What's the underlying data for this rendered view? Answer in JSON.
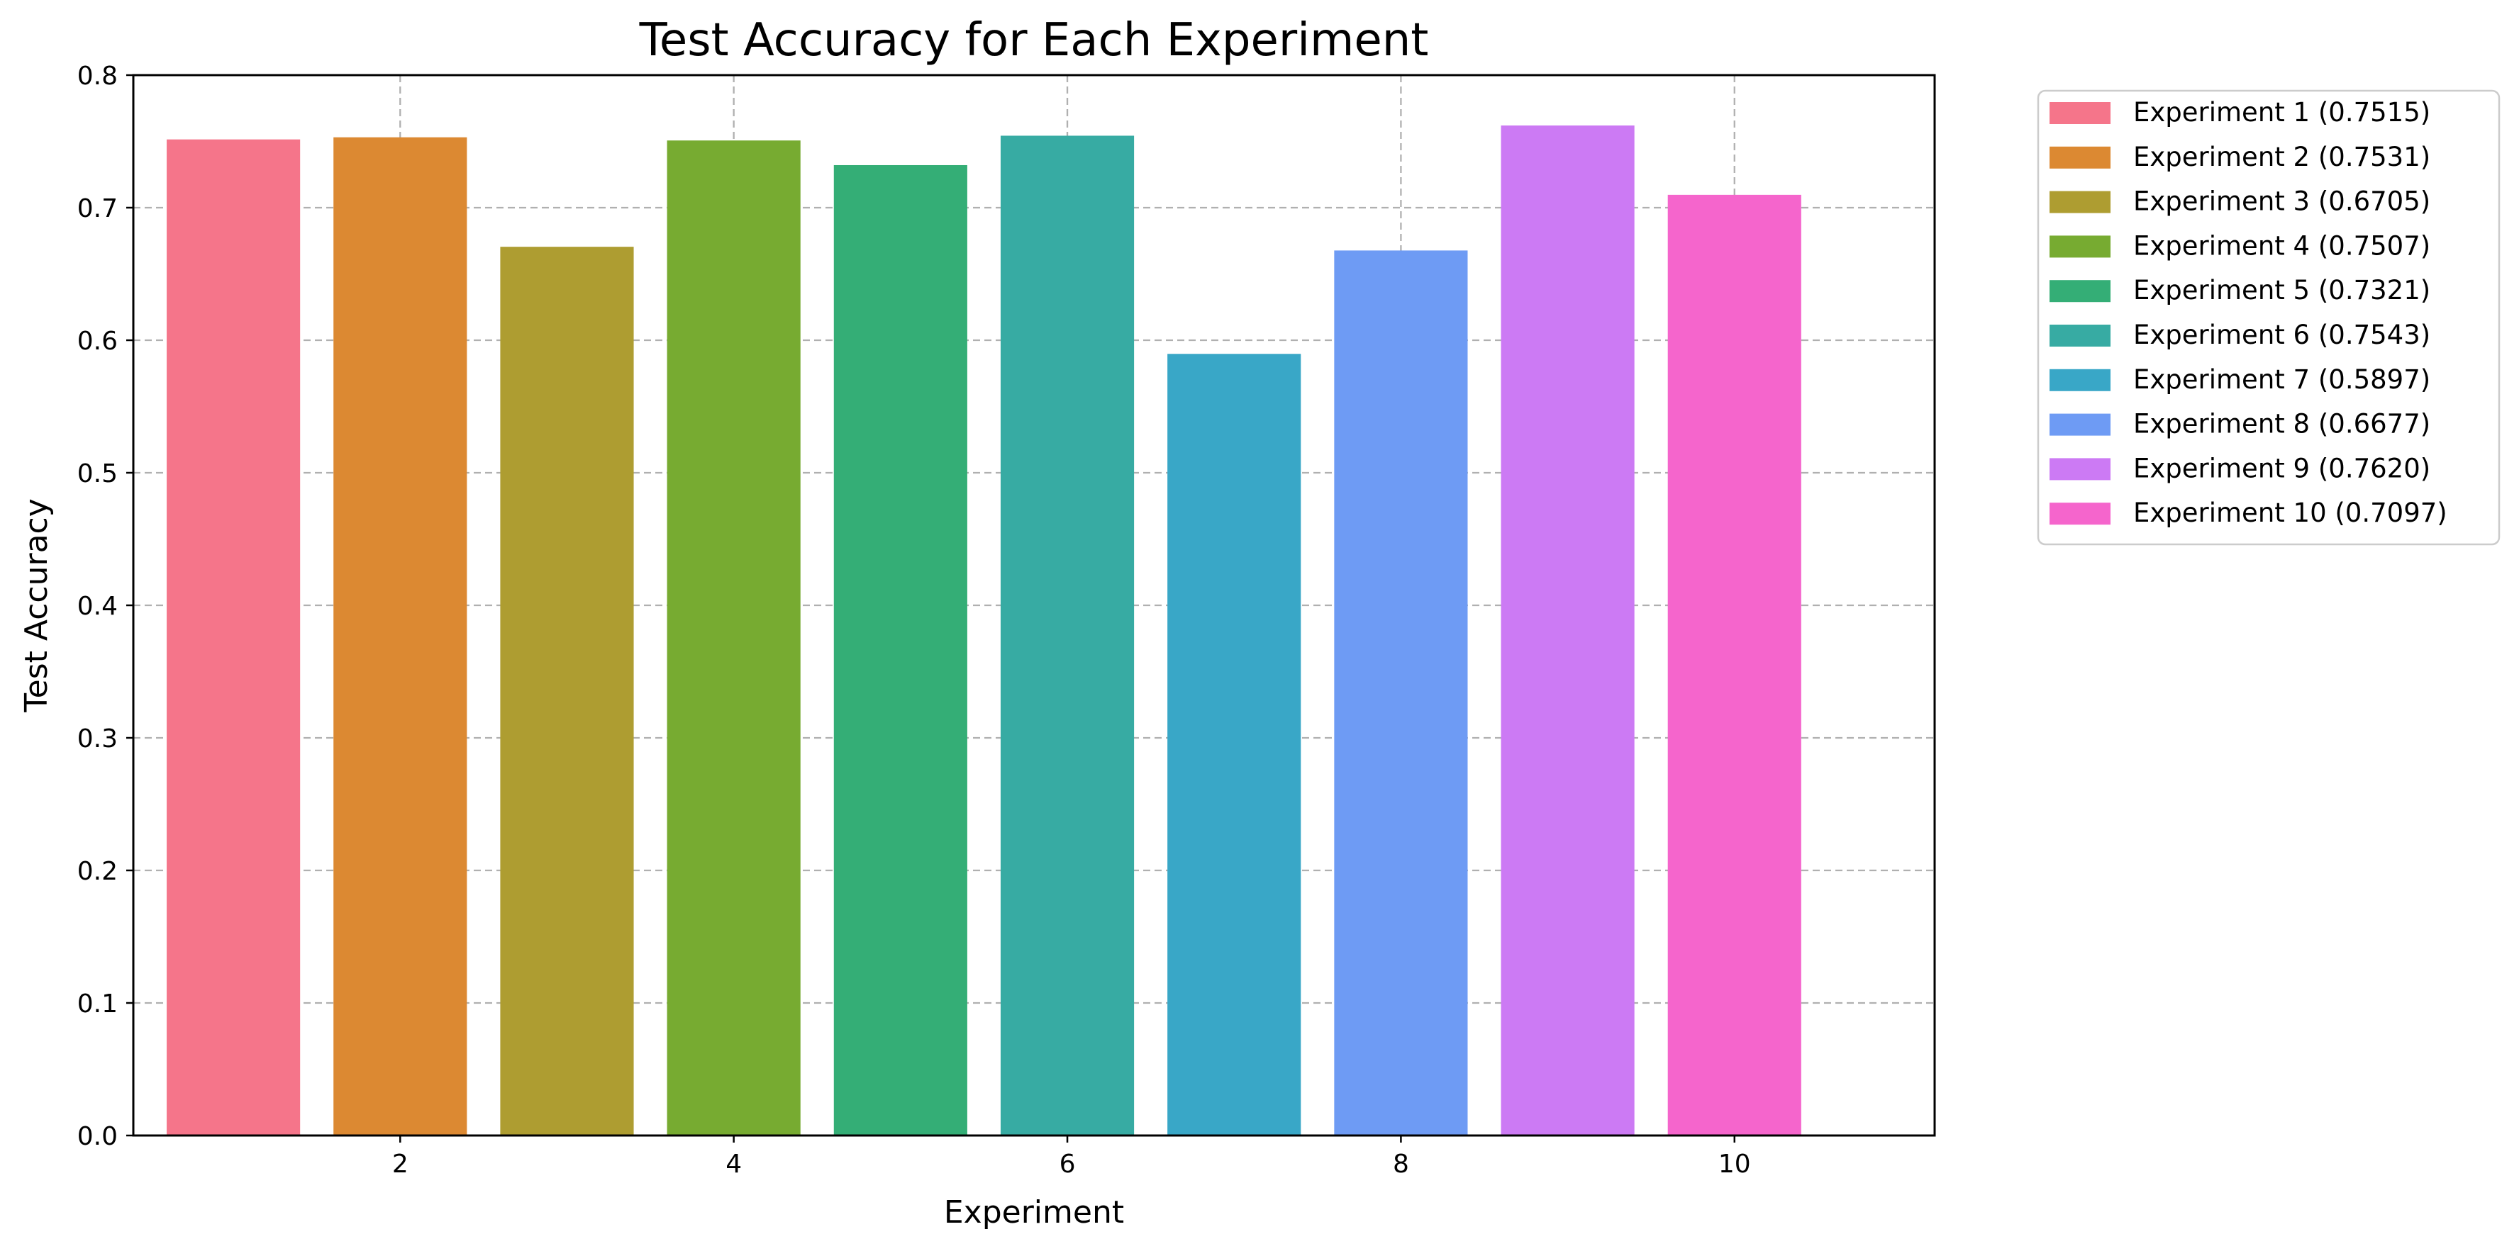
{
  "chart_data": {
    "type": "bar",
    "title": "Test Accuracy for Each Experiment",
    "xlabel": "Experiment",
    "ylabel": "Test Accuracy",
    "categories": [
      1,
      2,
      3,
      4,
      5,
      6,
      7,
      8,
      9,
      10
    ],
    "values": [
      0.7515,
      0.7531,
      0.6705,
      0.7507,
      0.7321,
      0.7543,
      0.5897,
      0.6677,
      0.762,
      0.7097
    ],
    "colors": [
      "#f5758a",
      "#dc8932",
      "#ae9d31",
      "#77ab31",
      "#34ae76",
      "#37aba3",
      "#39a7c7",
      "#6e9bf4",
      "#cc7af4",
      "#f565cc"
    ],
    "xticks": [
      "2",
      "4",
      "6",
      "8",
      "10"
    ],
    "xtick_values": [
      2,
      4,
      6,
      8,
      10
    ],
    "yticks": [
      "0.0",
      "0.1",
      "0.2",
      "0.3",
      "0.4",
      "0.5",
      "0.6",
      "0.7",
      "0.8"
    ],
    "ylim": [
      0,
      0.8
    ],
    "xlim": [
      0.4,
      11.2
    ],
    "grid": true,
    "legend_position": "outside-top-right",
    "legend": [
      "Experiment 1 (0.7515)",
      "Experiment 2 (0.7531)",
      "Experiment 3 (0.6705)",
      "Experiment 4 (0.7507)",
      "Experiment 5 (0.7321)",
      "Experiment 6 (0.7543)",
      "Experiment 7 (0.5897)",
      "Experiment 8 (0.6677)",
      "Experiment 9 (0.7620)",
      "Experiment 10 (0.7097)"
    ]
  }
}
